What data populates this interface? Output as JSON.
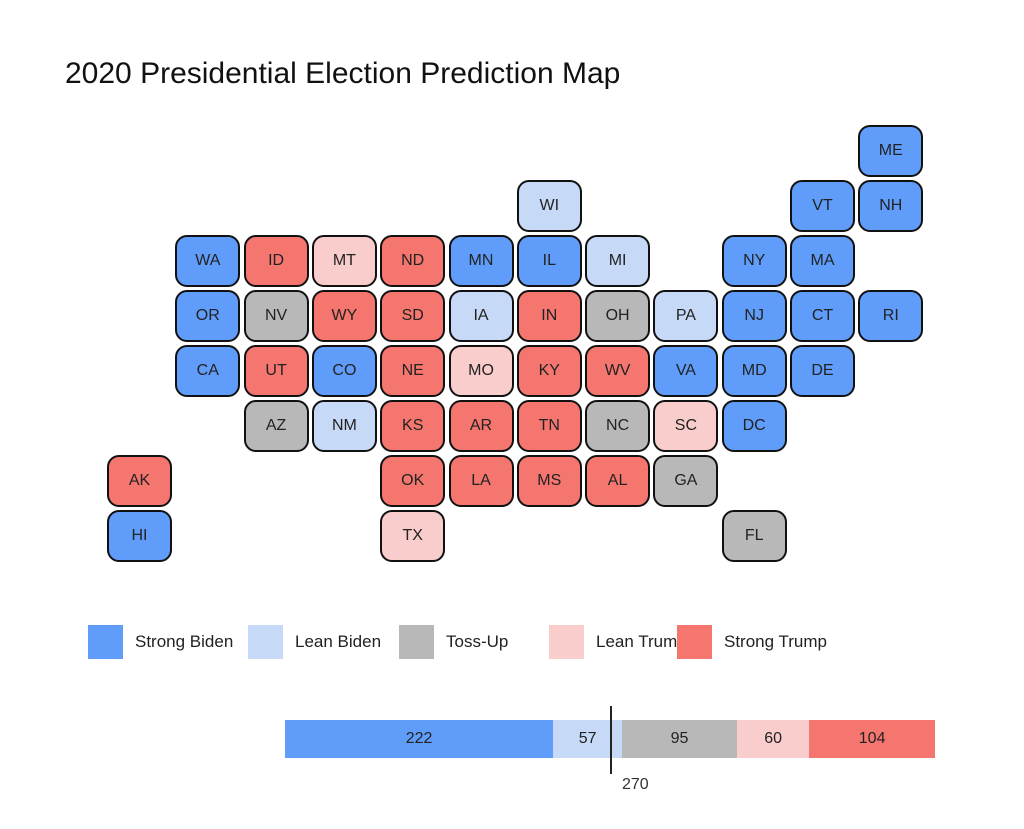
{
  "title": "2020 Presidential Election Prediction Map",
  "categories": [
    {
      "key": "strong_biden",
      "label": "Strong Biden",
      "color": "#609dfb"
    },
    {
      "key": "lean_biden",
      "label": "Lean Biden",
      "color": "#c6d9f7"
    },
    {
      "key": "tossup",
      "label": "Toss-Up",
      "color": "#b8b8b8"
    },
    {
      "key": "lean_trump",
      "label": "Lean Trump",
      "color": "#f8cdcb"
    },
    {
      "key": "strong_trump",
      "label": "Strong Trump",
      "color": "#f5766f"
    }
  ],
  "states": [
    {
      "abbr": "ME",
      "rating": "strong_biden",
      "col": 11,
      "row": 0
    },
    {
      "abbr": "WI",
      "rating": "lean_biden",
      "col": 6,
      "row": 1
    },
    {
      "abbr": "VT",
      "rating": "strong_biden",
      "col": 10,
      "row": 1
    },
    {
      "abbr": "NH",
      "rating": "strong_biden",
      "col": 11,
      "row": 1
    },
    {
      "abbr": "WA",
      "rating": "strong_biden",
      "col": 1,
      "row": 2
    },
    {
      "abbr": "ID",
      "rating": "strong_trump",
      "col": 2,
      "row": 2
    },
    {
      "abbr": "MT",
      "rating": "lean_trump",
      "col": 3,
      "row": 2
    },
    {
      "abbr": "ND",
      "rating": "strong_trump",
      "col": 4,
      "row": 2
    },
    {
      "abbr": "MN",
      "rating": "strong_biden",
      "col": 5,
      "row": 2
    },
    {
      "abbr": "IL",
      "rating": "strong_biden",
      "col": 6,
      "row": 2
    },
    {
      "abbr": "MI",
      "rating": "lean_biden",
      "col": 7,
      "row": 2
    },
    {
      "abbr": "NY",
      "rating": "strong_biden",
      "col": 9,
      "row": 2
    },
    {
      "abbr": "MA",
      "rating": "strong_biden",
      "col": 10,
      "row": 2
    },
    {
      "abbr": "OR",
      "rating": "strong_biden",
      "col": 1,
      "row": 3
    },
    {
      "abbr": "NV",
      "rating": "tossup",
      "col": 2,
      "row": 3
    },
    {
      "abbr": "WY",
      "rating": "strong_trump",
      "col": 3,
      "row": 3
    },
    {
      "abbr": "SD",
      "rating": "strong_trump",
      "col": 4,
      "row": 3
    },
    {
      "abbr": "IA",
      "rating": "lean_biden",
      "col": 5,
      "row": 3
    },
    {
      "abbr": "IN",
      "rating": "strong_trump",
      "col": 6,
      "row": 3
    },
    {
      "abbr": "OH",
      "rating": "tossup",
      "col": 7,
      "row": 3
    },
    {
      "abbr": "PA",
      "rating": "lean_biden",
      "col": 8,
      "row": 3
    },
    {
      "abbr": "NJ",
      "rating": "strong_biden",
      "col": 9,
      "row": 3
    },
    {
      "abbr": "CT",
      "rating": "strong_biden",
      "col": 10,
      "row": 3
    },
    {
      "abbr": "RI",
      "rating": "strong_biden",
      "col": 11,
      "row": 3
    },
    {
      "abbr": "CA",
      "rating": "strong_biden",
      "col": 1,
      "row": 4
    },
    {
      "abbr": "UT",
      "rating": "strong_trump",
      "col": 2,
      "row": 4
    },
    {
      "abbr": "CO",
      "rating": "strong_biden",
      "col": 3,
      "row": 4
    },
    {
      "abbr": "NE",
      "rating": "strong_trump",
      "col": 4,
      "row": 4
    },
    {
      "abbr": "MO",
      "rating": "lean_trump",
      "col": 5,
      "row": 4
    },
    {
      "abbr": "KY",
      "rating": "strong_trump",
      "col": 6,
      "row": 4
    },
    {
      "abbr": "WV",
      "rating": "strong_trump",
      "col": 7,
      "row": 4
    },
    {
      "abbr": "VA",
      "rating": "strong_biden",
      "col": 8,
      "row": 4
    },
    {
      "abbr": "MD",
      "rating": "strong_biden",
      "col": 9,
      "row": 4
    },
    {
      "abbr": "DE",
      "rating": "strong_biden",
      "col": 10,
      "row": 4
    },
    {
      "abbr": "AZ",
      "rating": "tossup",
      "col": 2,
      "row": 5
    },
    {
      "abbr": "NM",
      "rating": "lean_biden",
      "col": 3,
      "row": 5
    },
    {
      "abbr": "KS",
      "rating": "strong_trump",
      "col": 4,
      "row": 5
    },
    {
      "abbr": "AR",
      "rating": "strong_trump",
      "col": 5,
      "row": 5
    },
    {
      "abbr": "TN",
      "rating": "strong_trump",
      "col": 6,
      "row": 5
    },
    {
      "abbr": "NC",
      "rating": "tossup",
      "col": 7,
      "row": 5
    },
    {
      "abbr": "SC",
      "rating": "lean_trump",
      "col": 8,
      "row": 5
    },
    {
      "abbr": "DC",
      "rating": "strong_biden",
      "col": 9,
      "row": 5
    },
    {
      "abbr": "AK",
      "rating": "strong_trump",
      "col": 0,
      "row": 6
    },
    {
      "abbr": "OK",
      "rating": "strong_trump",
      "col": 4,
      "row": 6
    },
    {
      "abbr": "LA",
      "rating": "strong_trump",
      "col": 5,
      "row": 6
    },
    {
      "abbr": "MS",
      "rating": "strong_trump",
      "col": 6,
      "row": 6
    },
    {
      "abbr": "AL",
      "rating": "strong_trump",
      "col": 7,
      "row": 6
    },
    {
      "abbr": "GA",
      "rating": "tossup",
      "col": 8,
      "row": 6
    },
    {
      "abbr": "HI",
      "rating": "strong_biden",
      "col": 0,
      "row": 7
    },
    {
      "abbr": "TX",
      "rating": "lean_trump",
      "col": 4,
      "row": 7
    },
    {
      "abbr": "FL",
      "rating": "tossup",
      "col": 9,
      "row": 7
    }
  ],
  "electoral_totals": [
    {
      "rating": "strong_biden",
      "value": 222
    },
    {
      "rating": "lean_biden",
      "value": 57
    },
    {
      "rating": "tossup",
      "value": 95
    },
    {
      "rating": "lean_trump",
      "value": 60
    },
    {
      "rating": "strong_trump",
      "value": 104
    }
  ],
  "threshold": {
    "value": 270,
    "label": "270"
  }
}
